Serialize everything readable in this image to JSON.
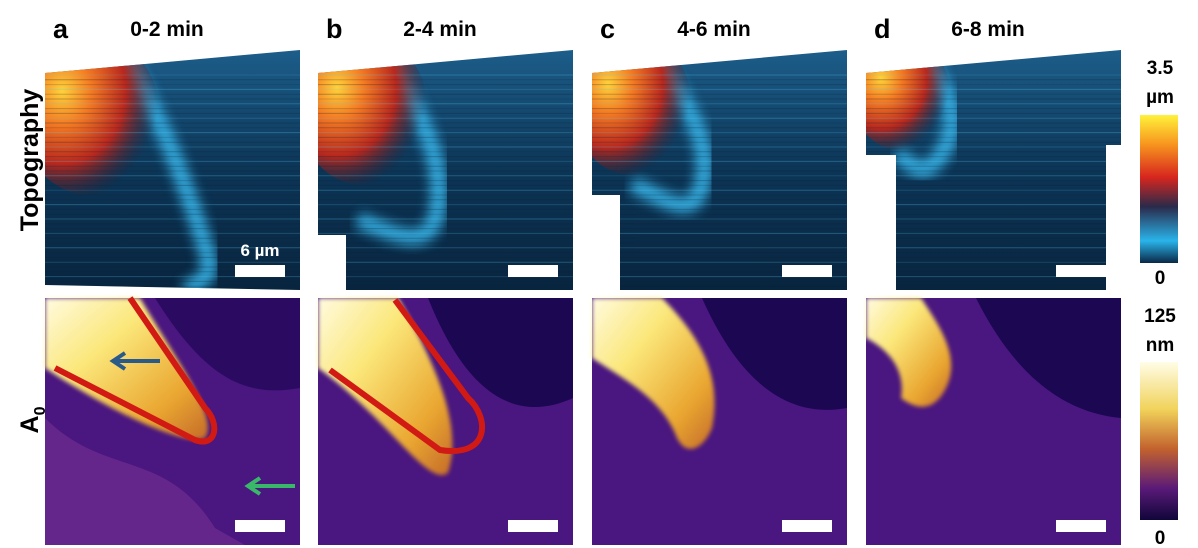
{
  "panels": [
    {
      "letter": "a",
      "title": "0-2 min"
    },
    {
      "letter": "b",
      "title": "2-4 min"
    },
    {
      "letter": "c",
      "title": "4-6 min"
    },
    {
      "letter": "d",
      "title": "6-8 min"
    }
  ],
  "row_labels": {
    "topography": "Topography",
    "amplitude": {
      "text": "A",
      "subscript": "0"
    }
  },
  "scale_bar": "6 µm",
  "colorbars": {
    "topography": {
      "max": 3.5,
      "unit": "µm",
      "min": 0
    },
    "amplitude": {
      "max": 125,
      "unit": "nm",
      "min": 0
    }
  }
}
